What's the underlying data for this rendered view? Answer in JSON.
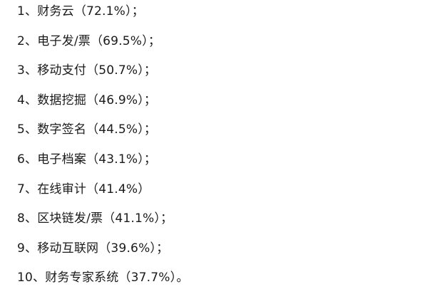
{
  "items": [
    {
      "text": "1、财务云（72.1%）；"
    },
    {
      "text": "2、电子发/票（69.5%）；"
    },
    {
      "text": "3、移动支付（50.7%）；"
    },
    {
      "text": "4、数据挖掘（46.9%）；"
    },
    {
      "text": "5、数字签名（44.5%）；"
    },
    {
      "text": "6、电子档案（43.1%）；"
    },
    {
      "text": "7、在线审计（41.4%）"
    },
    {
      "text": "8、区块链发/票（41.1%）；"
    },
    {
      "text": "9、移动互联网（39.6%）；"
    },
    {
      "text": "10、财务专家系统（37.7%）。"
    }
  ]
}
